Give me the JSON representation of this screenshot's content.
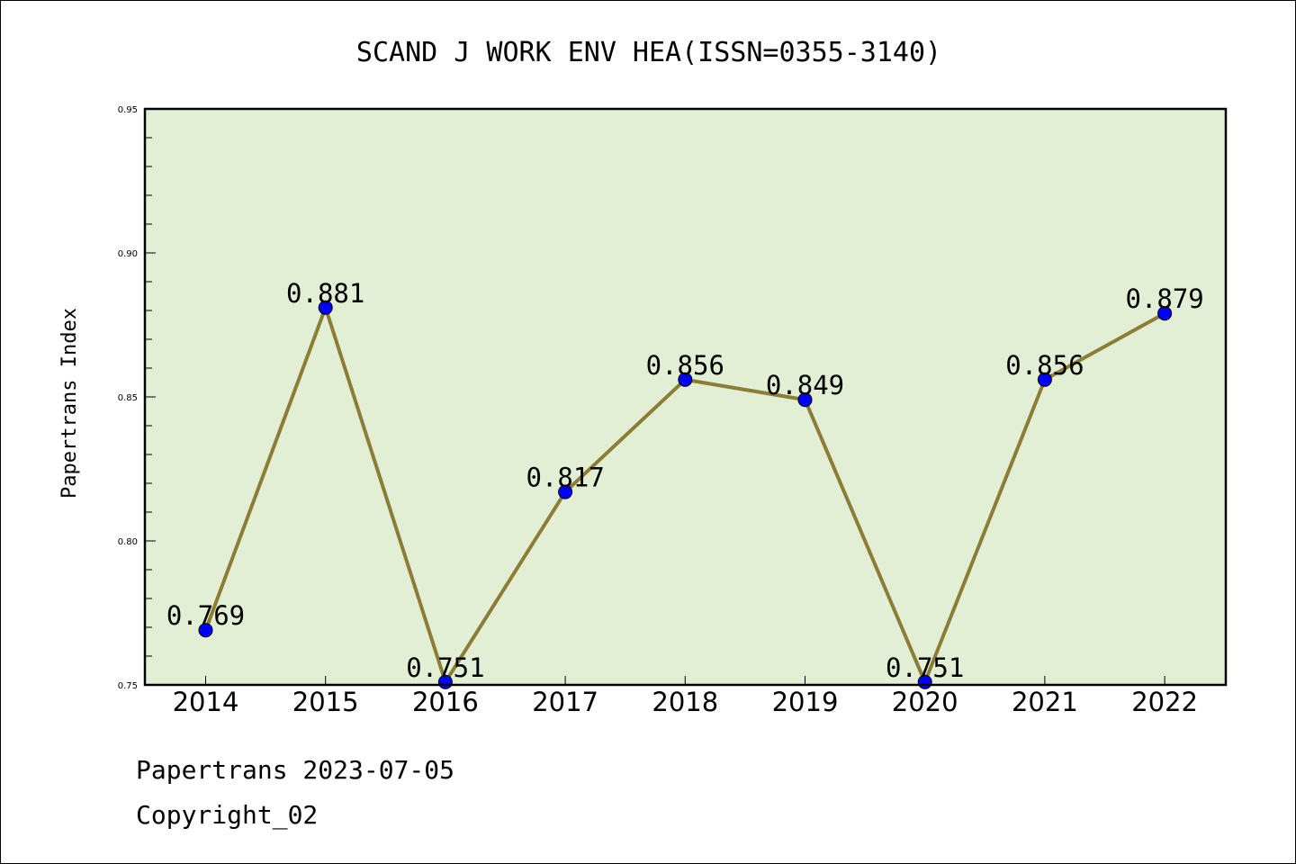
{
  "chart_data": {
    "type": "line",
    "title": "SCAND J WORK ENV HEA(ISSN=0355-3140)",
    "ylabel": "Papertrans Index",
    "xlabel": "",
    "categories": [
      "2014",
      "2015",
      "2016",
      "2017",
      "2018",
      "2019",
      "2020",
      "2021",
      "2022"
    ],
    "values": [
      0.769,
      0.881,
      0.751,
      0.817,
      0.856,
      0.849,
      0.751,
      0.856,
      0.879
    ],
    "data_labels": [
      "0.769",
      "0.881",
      "0.751",
      "0.817",
      "0.856",
      "0.849",
      "0.751",
      "0.856",
      "0.879"
    ],
    "ylim": [
      0.75,
      0.95
    ],
    "yticks": [
      0.75,
      0.8,
      0.85,
      0.9,
      0.95
    ],
    "ytick_labels": [
      "0.75",
      "0.80",
      "0.85",
      "0.90",
      "0.95"
    ],
    "grid": false,
    "colors": {
      "plot_background": "#e2efd5",
      "line": "#8b7d35",
      "marker": "#0000ff"
    }
  },
  "footer": {
    "date_line": "Papertrans 2023-07-05",
    "copyright": "Copyright_02"
  }
}
